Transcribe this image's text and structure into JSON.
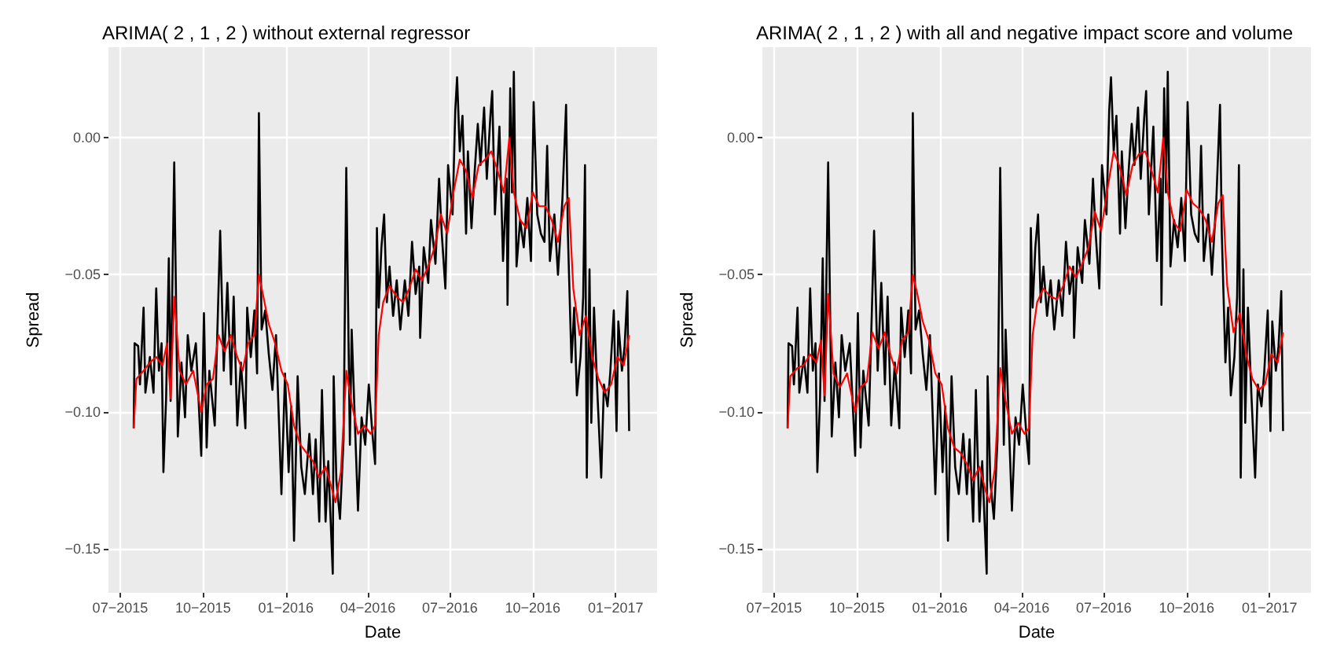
{
  "chart_data": [
    {
      "type": "line",
      "title": "ARIMA( 2 , 1 , 2 ) without external regressor",
      "xlabel": "Date",
      "ylabel": "Spread",
      "grid": true,
      "xlim": [
        "2015-06-18",
        "2017-02-16"
      ],
      "ylim": [
        -0.166,
        0.033
      ],
      "xticks": [
        {
          "value": "2015-07-01",
          "label": "07−2015"
        },
        {
          "value": "2015-10-01",
          "label": "10−2015"
        },
        {
          "value": "2016-01-01",
          "label": "01−2016"
        },
        {
          "value": "2016-04-01",
          "label": "04−2016"
        },
        {
          "value": "2016-07-01",
          "label": "07−2016"
        },
        {
          "value": "2016-10-01",
          "label": "10−2016"
        },
        {
          "value": "2017-01-01",
          "label": "01−2017"
        }
      ],
      "yticks": [
        {
          "value": -0.15,
          "label": "−0.15"
        },
        {
          "value": -0.1,
          "label": "−0.10"
        },
        {
          "value": -0.05,
          "label": "−0.05"
        },
        {
          "value": 0,
          "label": "0.00"
        }
      ],
      "series": [
        {
          "color": "#000000",
          "x": [
            "2015-07-16",
            "2015-07-17",
            "2015-07-21",
            "2015-07-23",
            "2015-07-27",
            "2015-07-29",
            "2015-08-03",
            "2015-08-07",
            "2015-08-10",
            "2015-08-13",
            "2015-08-16",
            "2015-08-18",
            "2015-08-21",
            "2015-08-24",
            "2015-08-26",
            "2015-08-30",
            "2015-09-03",
            "2015-09-07",
            "2015-09-11",
            "2015-09-14",
            "2015-09-18",
            "2015-09-23",
            "2015-09-29",
            "2015-10-02",
            "2015-10-05",
            "2015-10-08",
            "2015-10-14",
            "2015-10-20",
            "2015-10-24",
            "2015-10-28",
            "2015-11-01",
            "2015-11-04",
            "2015-11-08",
            "2015-11-12",
            "2015-11-17",
            "2015-11-19",
            "2015-11-23",
            "2015-11-27",
            "2015-11-30",
            "2015-12-02",
            "2015-12-05",
            "2015-12-09",
            "2015-12-13",
            "2015-12-17",
            "2015-12-21",
            "2015-12-27",
            "2015-12-31",
            "2016-01-04",
            "2016-01-07",
            "2016-01-10",
            "2016-01-14",
            "2016-01-18",
            "2016-01-22",
            "2016-01-27",
            "2016-01-31",
            "2016-02-03",
            "2016-02-07",
            "2016-02-10",
            "2016-02-14",
            "2016-02-17",
            "2016-02-22",
            "2016-02-23",
            "2016-02-26",
            "2016-03-01",
            "2016-03-05",
            "2016-03-08",
            "2016-03-12",
            "2016-03-14",
            "2016-03-18",
            "2016-03-21",
            "2016-03-25",
            "2016-03-29",
            "2016-04-02",
            "2016-04-06",
            "2016-04-09",
            "2016-04-11",
            "2016-04-13",
            "2016-04-16",
            "2016-04-19",
            "2016-04-22",
            "2016-04-25",
            "2016-04-29",
            "2016-05-03",
            "2016-05-07",
            "2016-05-12",
            "2016-05-16",
            "2016-05-20",
            "2016-05-24",
            "2016-05-28",
            "2016-05-29",
            "2016-06-02",
            "2016-06-07",
            "2016-06-10",
            "2016-06-15",
            "2016-06-19",
            "2016-06-22",
            "2016-06-26",
            "2016-06-29",
            "2016-07-04",
            "2016-07-07",
            "2016-07-09",
            "2016-07-12",
            "2016-07-15",
            "2016-07-19",
            "2016-07-21",
            "2016-07-25",
            "2016-07-28",
            "2016-08-01",
            "2016-08-04",
            "2016-08-08",
            "2016-08-11",
            "2016-08-15",
            "2016-08-17",
            "2016-08-20",
            "2016-08-25",
            "2016-08-29",
            "2016-09-02",
            "2016-09-03",
            "2016-09-06",
            "2016-09-08",
            "2016-09-10",
            "2016-09-13",
            "2016-09-17",
            "2016-09-21",
            "2016-09-25",
            "2016-09-29",
            "2016-10-02",
            "2016-10-06",
            "2016-10-10",
            "2016-10-14",
            "2016-10-17",
            "2016-10-20",
            "2016-10-25",
            "2016-10-29",
            "2016-11-03",
            "2016-11-07",
            "2016-11-09",
            "2016-11-13",
            "2016-11-16",
            "2016-11-19",
            "2016-11-23",
            "2016-11-26",
            "2016-11-28",
            "2016-11-30",
            "2016-12-03",
            "2016-12-05",
            "2016-12-08",
            "2016-12-12",
            "2016-12-16",
            "2016-12-19",
            "2016-12-23",
            "2016-12-26",
            "2016-12-30",
            "2017-01-02",
            "2017-01-04",
            "2017-01-08",
            "2017-01-11",
            "2017-01-14",
            "2017-01-16"
          ],
          "values": [
            -0.106,
            -0.075,
            -0.076,
            -0.09,
            -0.062,
            -0.093,
            -0.08,
            -0.093,
            -0.055,
            -0.085,
            -0.075,
            -0.122,
            -0.095,
            -0.044,
            -0.096,
            -0.009,
            -0.109,
            -0.082,
            -0.102,
            -0.072,
            -0.085,
            -0.075,
            -0.116,
            -0.064,
            -0.113,
            -0.085,
            -0.105,
            -0.034,
            -0.085,
            -0.053,
            -0.09,
            -0.058,
            -0.105,
            -0.082,
            -0.106,
            -0.062,
            -0.08,
            -0.063,
            -0.086,
            0.009,
            -0.07,
            -0.063,
            -0.079,
            -0.092,
            -0.072,
            -0.13,
            -0.086,
            -0.122,
            -0.098,
            -0.147,
            -0.087,
            -0.12,
            -0.13,
            -0.108,
            -0.13,
            -0.11,
            -0.14,
            -0.092,
            -0.14,
            -0.118,
            -0.159,
            -0.087,
            -0.125,
            -0.139,
            -0.11,
            -0.011,
            -0.112,
            -0.07,
            -0.108,
            -0.136,
            -0.102,
            -0.112,
            -0.09,
            -0.108,
            -0.119,
            -0.033,
            -0.062,
            -0.04,
            -0.028,
            -0.06,
            -0.047,
            -0.065,
            -0.052,
            -0.07,
            -0.052,
            -0.065,
            -0.038,
            -0.057,
            -0.047,
            -0.073,
            -0.04,
            -0.053,
            -0.03,
            -0.046,
            -0.015,
            -0.035,
            -0.055,
            -0.01,
            -0.028,
            0.01,
            0.022,
            -0.005,
            0.008,
            -0.035,
            -0.005,
            -0.033,
            -0.015,
            0.005,
            -0.01,
            0.011,
            -0.015,
            0.008,
            0.017,
            -0.028,
            0.004,
            -0.045,
            -0.015,
            -0.061,
            0.018,
            -0.02,
            0.024,
            -0.047,
            -0.03,
            -0.04,
            -0.022,
            -0.045,
            0.013,
            -0.028,
            -0.035,
            -0.038,
            -0.003,
            -0.045,
            -0.028,
            -0.05,
            -0.022,
            0.012,
            -0.035,
            -0.082,
            -0.062,
            -0.094,
            -0.08,
            -0.058,
            -0.01,
            -0.124,
            -0.048,
            -0.104,
            -0.062,
            -0.095,
            -0.124,
            -0.09,
            -0.098,
            -0.086,
            -0.063,
            -0.107,
            -0.067,
            -0.085,
            -0.076,
            -0.056,
            -0.107
          ]
        },
        {
          "color": "#ff0000",
          "x": [
            "2015-07-16",
            "2015-07-19",
            "2015-07-27",
            "2015-08-03",
            "2015-08-10",
            "2015-08-17",
            "2015-08-22",
            "2015-08-26",
            "2015-08-30",
            "2015-09-05",
            "2015-09-12",
            "2015-09-20",
            "2015-09-29",
            "2015-10-05",
            "2015-10-12",
            "2015-10-18",
            "2015-10-25",
            "2015-11-01",
            "2015-11-08",
            "2015-11-14",
            "2015-11-20",
            "2015-11-27",
            "2015-12-02",
            "2015-12-07",
            "2015-12-13",
            "2015-12-20",
            "2015-12-27",
            "2016-01-03",
            "2016-01-10",
            "2016-01-17",
            "2016-01-24",
            "2016-01-31",
            "2016-02-07",
            "2016-02-14",
            "2016-02-21",
            "2016-02-25",
            "2016-03-02",
            "2016-03-08",
            "2016-03-14",
            "2016-03-21",
            "2016-03-28",
            "2016-04-04",
            "2016-04-09",
            "2016-04-13",
            "2016-04-18",
            "2016-04-25",
            "2016-05-03",
            "2016-05-10",
            "2016-05-17",
            "2016-05-24",
            "2016-05-31",
            "2016-06-07",
            "2016-06-14",
            "2016-06-21",
            "2016-06-28",
            "2016-07-05",
            "2016-07-12",
            "2016-07-19",
            "2016-07-26",
            "2016-08-02",
            "2016-08-09",
            "2016-08-16",
            "2016-08-23",
            "2016-08-30",
            "2016-09-05",
            "2016-09-10",
            "2016-09-17",
            "2016-09-24",
            "2016-10-01",
            "2016-10-08",
            "2016-10-15",
            "2016-10-22",
            "2016-10-29",
            "2016-11-05",
            "2016-11-10",
            "2016-11-15",
            "2016-11-22",
            "2016-11-29",
            "2016-12-06",
            "2016-12-13",
            "2016-12-20",
            "2016-12-27",
            "2017-01-03",
            "2017-01-10",
            "2017-01-16"
          ],
          "values": [
            -0.106,
            -0.088,
            -0.085,
            -0.082,
            -0.08,
            -0.083,
            -0.075,
            -0.095,
            -0.058,
            -0.085,
            -0.09,
            -0.085,
            -0.1,
            -0.09,
            -0.088,
            -0.072,
            -0.078,
            -0.072,
            -0.08,
            -0.085,
            -0.075,
            -0.072,
            -0.05,
            -0.058,
            -0.068,
            -0.075,
            -0.085,
            -0.09,
            -0.105,
            -0.112,
            -0.115,
            -0.118,
            -0.124,
            -0.12,
            -0.128,
            -0.133,
            -0.122,
            -0.085,
            -0.097,
            -0.108,
            -0.105,
            -0.108,
            -0.105,
            -0.072,
            -0.06,
            -0.054,
            -0.058,
            -0.06,
            -0.055,
            -0.048,
            -0.052,
            -0.047,
            -0.04,
            -0.028,
            -0.035,
            -0.02,
            -0.008,
            -0.012,
            -0.022,
            -0.01,
            -0.008,
            -0.005,
            -0.012,
            -0.02,
            0,
            -0.02,
            -0.03,
            -0.033,
            -0.02,
            -0.025,
            -0.025,
            -0.03,
            -0.038,
            -0.025,
            -0.022,
            -0.055,
            -0.072,
            -0.065,
            -0.08,
            -0.088,
            -0.093,
            -0.09,
            -0.08,
            -0.083,
            -0.072
          ]
        }
      ]
    },
    {
      "type": "line",
      "title": "ARIMA( 2 , 1 , 2 ) with all and negative impact score and volume",
      "xlabel": "Date",
      "ylabel": "Spread",
      "grid": true,
      "xlim": [
        "2015-06-18",
        "2017-02-16"
      ],
      "ylim": [
        -0.166,
        0.033
      ],
      "xticks": [
        {
          "value": "2015-07-01",
          "label": "07−2015"
        },
        {
          "value": "2015-10-01",
          "label": "10−2015"
        },
        {
          "value": "2016-01-01",
          "label": "01−2016"
        },
        {
          "value": "2016-04-01",
          "label": "04−2016"
        },
        {
          "value": "2016-07-01",
          "label": "07−2016"
        },
        {
          "value": "2016-10-01",
          "label": "10−2016"
        },
        {
          "value": "2017-01-01",
          "label": "01−2017"
        }
      ],
      "yticks": [
        {
          "value": -0.15,
          "label": "−0.15"
        },
        {
          "value": -0.1,
          "label": "−0.10"
        },
        {
          "value": -0.05,
          "label": "−0.05"
        },
        {
          "value": 0,
          "label": "0.00"
        }
      ],
      "series": [
        {
          "color": "#000000",
          "x": [
            "2015-07-16",
            "2015-07-17",
            "2015-07-21",
            "2015-07-23",
            "2015-07-27",
            "2015-07-29",
            "2015-08-03",
            "2015-08-07",
            "2015-08-10",
            "2015-08-13",
            "2015-08-16",
            "2015-08-18",
            "2015-08-21",
            "2015-08-24",
            "2015-08-26",
            "2015-08-30",
            "2015-09-03",
            "2015-09-07",
            "2015-09-11",
            "2015-09-14",
            "2015-09-18",
            "2015-09-23",
            "2015-09-29",
            "2015-10-02",
            "2015-10-05",
            "2015-10-08",
            "2015-10-14",
            "2015-10-20",
            "2015-10-24",
            "2015-10-28",
            "2015-11-01",
            "2015-11-04",
            "2015-11-08",
            "2015-11-12",
            "2015-11-17",
            "2015-11-19",
            "2015-11-23",
            "2015-11-27",
            "2015-11-30",
            "2015-12-02",
            "2015-12-05",
            "2015-12-09",
            "2015-12-13",
            "2015-12-17",
            "2015-12-21",
            "2015-12-27",
            "2015-12-31",
            "2016-01-04",
            "2016-01-07",
            "2016-01-10",
            "2016-01-14",
            "2016-01-18",
            "2016-01-22",
            "2016-01-27",
            "2016-01-31",
            "2016-02-03",
            "2016-02-07",
            "2016-02-10",
            "2016-02-14",
            "2016-02-17",
            "2016-02-22",
            "2016-02-23",
            "2016-02-26",
            "2016-03-01",
            "2016-03-05",
            "2016-03-08",
            "2016-03-12",
            "2016-03-14",
            "2016-03-18",
            "2016-03-21",
            "2016-03-25",
            "2016-03-29",
            "2016-04-02",
            "2016-04-06",
            "2016-04-09",
            "2016-04-11",
            "2016-04-13",
            "2016-04-16",
            "2016-04-19",
            "2016-04-22",
            "2016-04-25",
            "2016-04-29",
            "2016-05-03",
            "2016-05-07",
            "2016-05-12",
            "2016-05-16",
            "2016-05-20",
            "2016-05-24",
            "2016-05-28",
            "2016-05-29",
            "2016-06-02",
            "2016-06-07",
            "2016-06-10",
            "2016-06-15",
            "2016-06-19",
            "2016-06-22",
            "2016-06-26",
            "2016-06-29",
            "2016-07-04",
            "2016-07-07",
            "2016-07-09",
            "2016-07-12",
            "2016-07-15",
            "2016-07-19",
            "2016-07-21",
            "2016-07-25",
            "2016-07-28",
            "2016-08-01",
            "2016-08-04",
            "2016-08-08",
            "2016-08-11",
            "2016-08-15",
            "2016-08-17",
            "2016-08-20",
            "2016-08-25",
            "2016-08-29",
            "2016-09-02",
            "2016-09-03",
            "2016-09-06",
            "2016-09-08",
            "2016-09-10",
            "2016-09-13",
            "2016-09-17",
            "2016-09-21",
            "2016-09-25",
            "2016-09-29",
            "2016-10-02",
            "2016-10-06",
            "2016-10-10",
            "2016-10-14",
            "2016-10-17",
            "2016-10-20",
            "2016-10-25",
            "2016-10-29",
            "2016-11-03",
            "2016-11-07",
            "2016-11-09",
            "2016-11-13",
            "2016-11-16",
            "2016-11-19",
            "2016-11-23",
            "2016-11-26",
            "2016-11-28",
            "2016-11-30",
            "2016-12-03",
            "2016-12-05",
            "2016-12-08",
            "2016-12-12",
            "2016-12-16",
            "2016-12-19",
            "2016-12-23",
            "2016-12-26",
            "2016-12-30",
            "2017-01-02",
            "2017-01-04",
            "2017-01-08",
            "2017-01-11",
            "2017-01-14",
            "2017-01-16"
          ],
          "values": [
            -0.106,
            -0.075,
            -0.076,
            -0.09,
            -0.062,
            -0.093,
            -0.08,
            -0.093,
            -0.055,
            -0.085,
            -0.075,
            -0.122,
            -0.095,
            -0.044,
            -0.096,
            -0.009,
            -0.109,
            -0.082,
            -0.102,
            -0.072,
            -0.085,
            -0.075,
            -0.116,
            -0.064,
            -0.113,
            -0.085,
            -0.105,
            -0.034,
            -0.085,
            -0.053,
            -0.09,
            -0.058,
            -0.105,
            -0.082,
            -0.106,
            -0.062,
            -0.08,
            -0.063,
            -0.086,
            0.009,
            -0.07,
            -0.063,
            -0.079,
            -0.092,
            -0.072,
            -0.13,
            -0.086,
            -0.122,
            -0.098,
            -0.147,
            -0.087,
            -0.12,
            -0.13,
            -0.108,
            -0.13,
            -0.11,
            -0.14,
            -0.092,
            -0.14,
            -0.118,
            -0.159,
            -0.087,
            -0.125,
            -0.139,
            -0.11,
            -0.011,
            -0.112,
            -0.07,
            -0.108,
            -0.136,
            -0.102,
            -0.112,
            -0.09,
            -0.108,
            -0.119,
            -0.033,
            -0.062,
            -0.04,
            -0.028,
            -0.06,
            -0.047,
            -0.065,
            -0.052,
            -0.07,
            -0.052,
            -0.065,
            -0.038,
            -0.057,
            -0.047,
            -0.073,
            -0.04,
            -0.053,
            -0.03,
            -0.046,
            -0.015,
            -0.035,
            -0.055,
            -0.01,
            -0.028,
            0.01,
            0.022,
            -0.005,
            0.008,
            -0.035,
            -0.005,
            -0.033,
            -0.015,
            0.005,
            -0.01,
            0.011,
            -0.015,
            0.008,
            0.017,
            -0.028,
            0.004,
            -0.045,
            -0.015,
            -0.061,
            0.018,
            -0.02,
            0.024,
            -0.047,
            -0.03,
            -0.04,
            -0.022,
            -0.045,
            0.013,
            -0.028,
            -0.035,
            -0.038,
            -0.003,
            -0.045,
            -0.028,
            -0.05,
            -0.022,
            0.012,
            -0.035,
            -0.082,
            -0.062,
            -0.094,
            -0.08,
            -0.058,
            -0.01,
            -0.124,
            -0.048,
            -0.104,
            -0.062,
            -0.095,
            -0.124,
            -0.09,
            -0.098,
            -0.086,
            -0.063,
            -0.107,
            -0.067,
            -0.085,
            -0.076,
            -0.056,
            -0.107
          ]
        },
        {
          "color": "#ff0000",
          "x": [
            "2015-07-16",
            "2015-07-19",
            "2015-07-27",
            "2015-08-03",
            "2015-08-10",
            "2015-08-17",
            "2015-08-22",
            "2015-08-26",
            "2015-08-30",
            "2015-09-05",
            "2015-09-12",
            "2015-09-20",
            "2015-09-29",
            "2015-10-05",
            "2015-10-12",
            "2015-10-18",
            "2015-10-25",
            "2015-11-01",
            "2015-11-08",
            "2015-11-14",
            "2015-11-20",
            "2015-11-27",
            "2015-12-02",
            "2015-12-07",
            "2015-12-13",
            "2015-12-20",
            "2015-12-27",
            "2016-01-03",
            "2016-01-10",
            "2016-01-17",
            "2016-01-24",
            "2016-01-31",
            "2016-02-07",
            "2016-02-14",
            "2016-02-21",
            "2016-02-25",
            "2016-03-02",
            "2016-03-08",
            "2016-03-14",
            "2016-03-21",
            "2016-03-28",
            "2016-04-04",
            "2016-04-09",
            "2016-04-13",
            "2016-04-18",
            "2016-04-25",
            "2016-05-03",
            "2016-05-10",
            "2016-05-17",
            "2016-05-24",
            "2016-05-31",
            "2016-06-07",
            "2016-06-14",
            "2016-06-21",
            "2016-06-28",
            "2016-07-05",
            "2016-07-12",
            "2016-07-19",
            "2016-07-26",
            "2016-08-02",
            "2016-08-09",
            "2016-08-16",
            "2016-08-23",
            "2016-08-30",
            "2016-09-05",
            "2016-09-10",
            "2016-09-17",
            "2016-09-24",
            "2016-10-01",
            "2016-10-08",
            "2016-10-15",
            "2016-10-22",
            "2016-10-29",
            "2016-11-05",
            "2016-11-10",
            "2016-11-15",
            "2016-11-22",
            "2016-11-29",
            "2016-12-06",
            "2016-12-13",
            "2016-12-20",
            "2016-12-27",
            "2017-01-03",
            "2017-01-10",
            "2017-01-16"
          ],
          "values": [
            -0.106,
            -0.087,
            -0.084,
            -0.083,
            -0.079,
            -0.082,
            -0.074,
            -0.094,
            -0.057,
            -0.086,
            -0.091,
            -0.086,
            -0.1,
            -0.091,
            -0.089,
            -0.071,
            -0.077,
            -0.071,
            -0.08,
            -0.086,
            -0.074,
            -0.071,
            -0.05,
            -0.057,
            -0.067,
            -0.074,
            -0.086,
            -0.09,
            -0.106,
            -0.113,
            -0.115,
            -0.119,
            -0.125,
            -0.12,
            -0.129,
            -0.133,
            -0.121,
            -0.084,
            -0.096,
            -0.108,
            -0.104,
            -0.108,
            -0.106,
            -0.072,
            -0.06,
            -0.055,
            -0.058,
            -0.059,
            -0.054,
            -0.047,
            -0.051,
            -0.046,
            -0.04,
            -0.027,
            -0.034,
            -0.019,
            -0.005,
            -0.011,
            -0.021,
            -0.01,
            -0.006,
            -0.005,
            -0.012,
            -0.02,
            0,
            -0.02,
            -0.031,
            -0.034,
            -0.019,
            -0.024,
            -0.026,
            -0.03,
            -0.038,
            -0.024,
            -0.021,
            -0.054,
            -0.071,
            -0.064,
            -0.079,
            -0.088,
            -0.092,
            -0.09,
            -0.079,
            -0.082,
            -0.071
          ]
        }
      ]
    }
  ]
}
